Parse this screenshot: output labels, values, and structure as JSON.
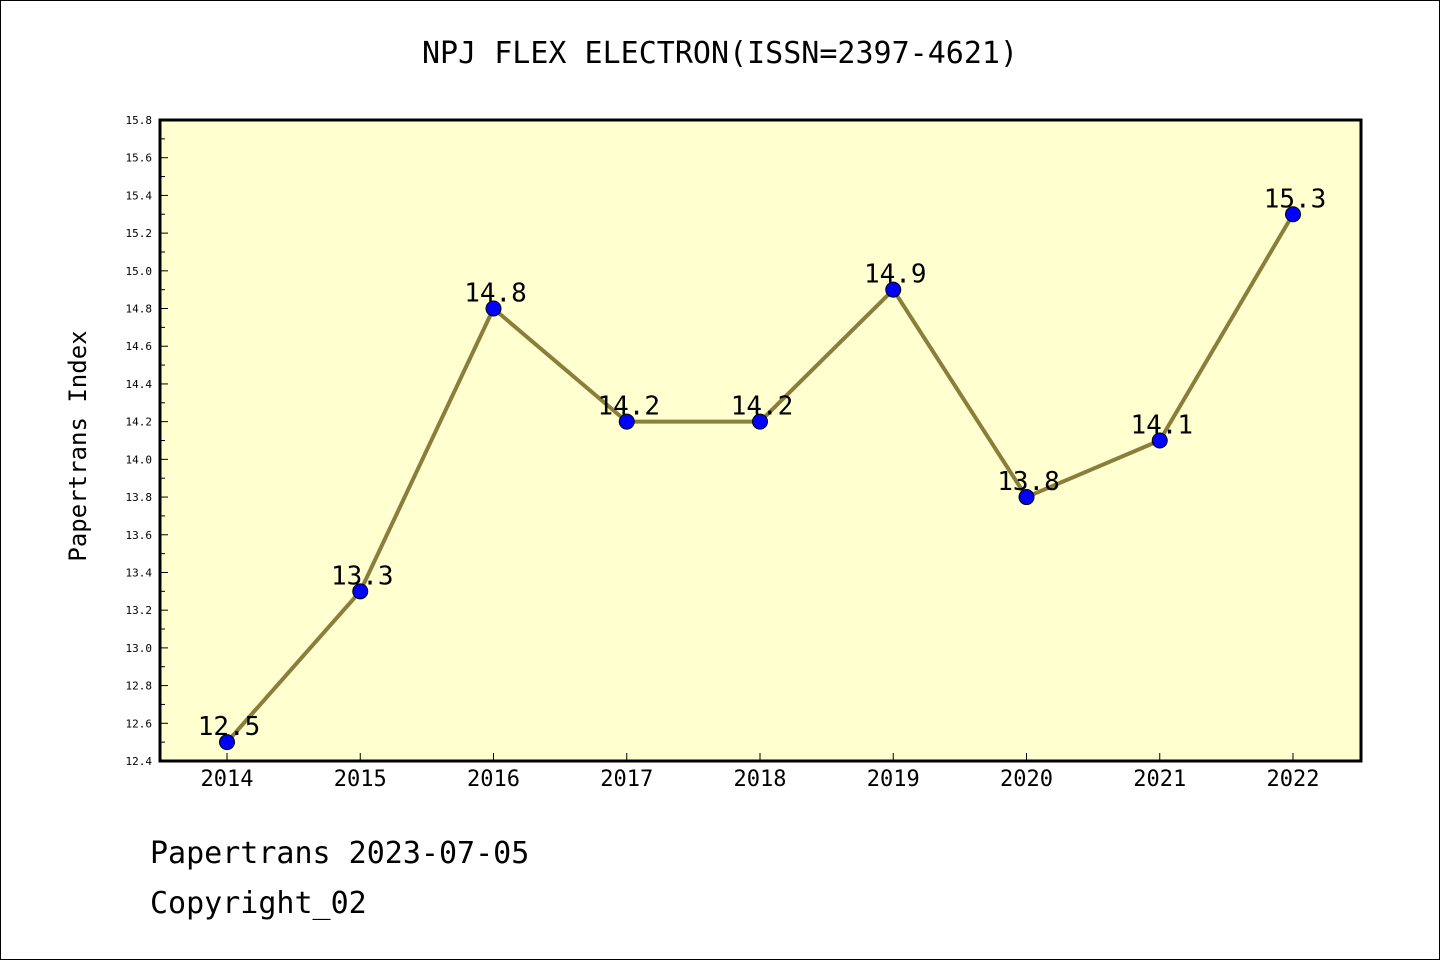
{
  "chart_data": {
    "type": "line",
    "title": "NPJ FLEX ELECTRON(ISSN=2397-4621)",
    "xlabel": "",
    "ylabel": "Papertrans Index",
    "x": [
      "2014",
      "2015",
      "2016",
      "2017",
      "2018",
      "2019",
      "2020",
      "2021",
      "2022"
    ],
    "values": [
      12.5,
      13.3,
      14.8,
      14.2,
      14.2,
      14.9,
      13.8,
      14.1,
      15.3
    ],
    "data_labels": [
      "12.5",
      "13.3",
      "14.8",
      "14.2",
      "14.2",
      "14.9",
      "13.8",
      "14.1",
      "15.3"
    ],
    "ylim": [
      12.4,
      15.8
    ],
    "yticks": [
      "12.4",
      "12.6",
      "12.8",
      "13.0",
      "13.2",
      "13.4",
      "13.6",
      "13.8",
      "14.0",
      "14.2",
      "14.4",
      "14.6",
      "14.8",
      "15.0",
      "15.2",
      "15.4",
      "15.6",
      "15.8"
    ],
    "grid": false,
    "legend": "none",
    "colors": {
      "line": "#8b7d3a",
      "marker": "#0000ff",
      "plot_background": "#ffffd0"
    }
  },
  "footer": {
    "line1": "Papertrans 2023-07-05",
    "line2": "Copyright_02"
  }
}
